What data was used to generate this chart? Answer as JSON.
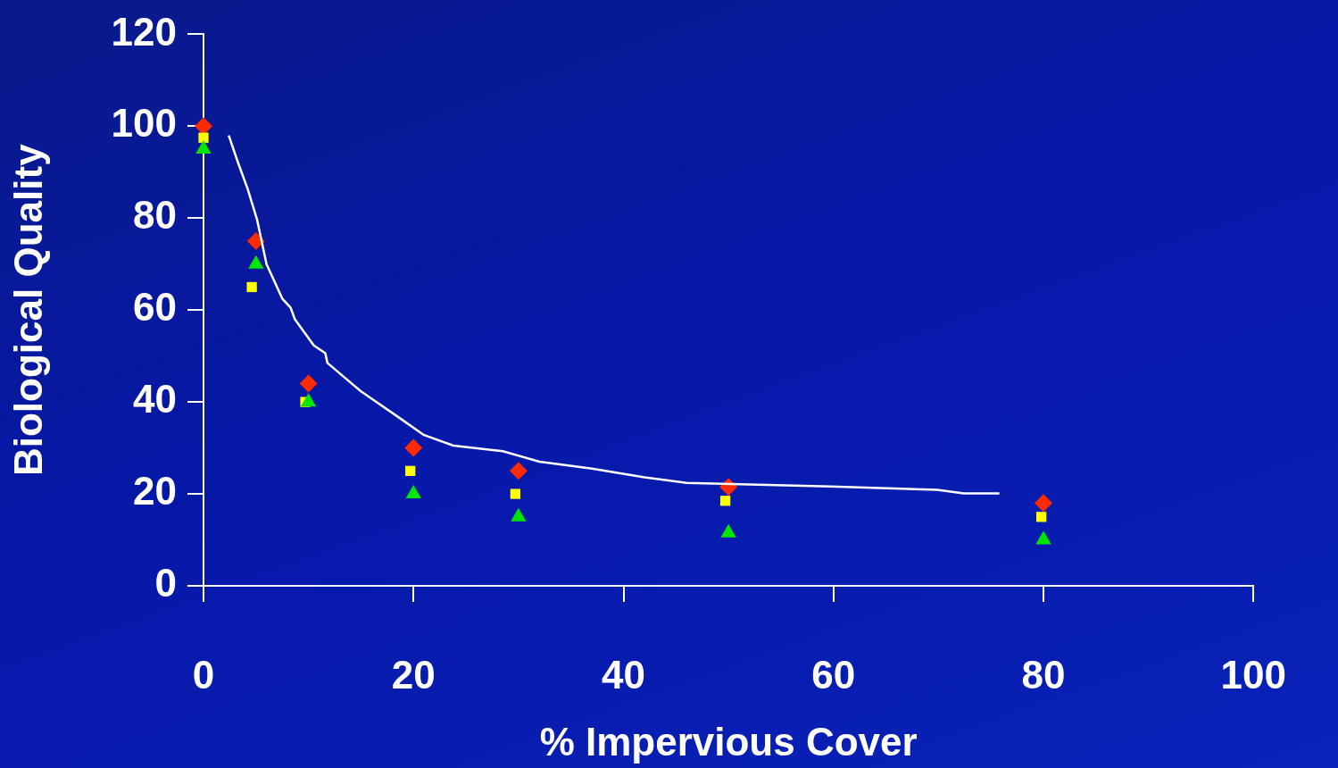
{
  "chart_data": {
    "type": "scatter",
    "xlabel": "% Impervious Cover",
    "ylabel": "Biological Quality",
    "xlim": [
      0,
      100
    ],
    "xticks": [
      0,
      20,
      40,
      60,
      80,
      100
    ],
    "ylim": [
      0,
      120
    ],
    "yticks": [
      0,
      20,
      40,
      60,
      80,
      100,
      120
    ],
    "grid": false,
    "legend": false,
    "series": [
      {
        "color": "#ff2a00",
        "marker": "diamond",
        "x": [
          0,
          5,
          10,
          20,
          30,
          50,
          80
        ],
        "values": [
          100,
          75,
          44,
          30,
          25,
          21.5,
          18
        ]
      },
      {
        "color": "#ffff00",
        "marker": "square",
        "x": [
          0,
          4.6,
          9.7,
          19.7,
          29.7,
          49.7,
          79.8
        ],
        "values": [
          97.5,
          65,
          40,
          25,
          20,
          18.5,
          15
        ]
      },
      {
        "color": "#00e600",
        "marker": "triangle",
        "x": [
          0,
          5,
          10,
          20,
          30,
          50,
          80
        ],
        "values": [
          95,
          70,
          40,
          20,
          15,
          11.5,
          10
        ]
      },
      {
        "type": "line",
        "color": "#ffffff",
        "marker": "none",
        "line_style": "solid",
        "x": [
          2.4,
          3.3,
          4.2,
          5.1,
          6.0,
          7.5,
          8.3,
          8.7,
          10.5,
          11.6,
          11.8,
          13.5,
          15,
          18.5,
          21,
          23.8,
          28.5,
          32,
          37,
          42,
          46,
          59.7,
          69.9,
          72.4,
          75.8
        ],
        "values": [
          98,
          92,
          86.4,
          79.7,
          70,
          62.5,
          60.5,
          58,
          52.3,
          50.6,
          48.5,
          45.2,
          42.3,
          36.8,
          32.8,
          30.5,
          29.3,
          27,
          25.5,
          23.6,
          22.4,
          21.6,
          20.9,
          20.1,
          20.1
        ]
      }
    ]
  }
}
